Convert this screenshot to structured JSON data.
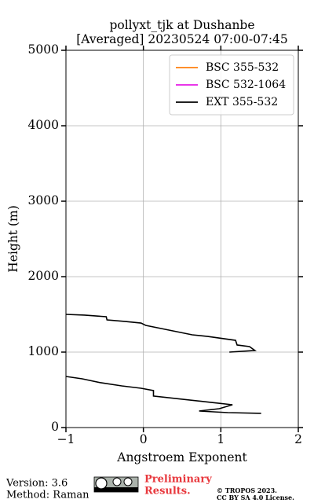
{
  "chart_data": {
    "type": "line",
    "title": [
      "pollyxt_tjk at Dushanbe",
      "[Averaged] 20230524 07:00-07:45"
    ],
    "x_label": "Angstroem Exponent",
    "y_label": "Height (m)",
    "y": [
      188,
      198,
      219,
      250,
      302,
      333,
      417,
      490,
      521,
      552,
      594,
      646,
      677,
      null,
      1000,
      1021,
      1073,
      1094,
      1156,
      1208,
      1229,
      1354,
      1385,
      1406,
      1427,
      1469,
      1490,
      1500
    ],
    "series": [
      {
        "name": "BSC 355-532",
        "color": "#ff7f0e",
        "values": [
          null,
          null,
          null,
          null,
          null,
          null,
          null,
          null,
          null,
          null,
          null,
          null,
          null,
          null,
          null,
          null,
          null,
          null,
          null,
          null,
          null,
          null,
          null,
          null,
          null,
          null,
          null,
          null
        ]
      },
      {
        "name": "BSC 532-1064",
        "color": "#e619e6",
        "values": [
          null,
          null,
          null,
          null,
          null,
          null,
          null,
          null,
          null,
          null,
          null,
          null,
          null,
          null,
          null,
          null,
          null,
          null,
          null,
          null,
          null,
          null,
          null,
          null,
          null,
          null,
          null,
          null
        ]
      },
      {
        "name": "EXT 355-532",
        "color": "#000000",
        "values": [
          1.52,
          1.09,
          0.72,
          0.98,
          1.15,
          0.88,
          0.13,
          0.13,
          -0.03,
          -0.28,
          -0.55,
          -0.79,
          -1.0,
          null,
          1.11,
          1.44,
          1.37,
          1.21,
          1.19,
          0.83,
          0.63,
          0.03,
          -0.03,
          -0.23,
          -0.47,
          -0.48,
          -0.76,
          -1.0
        ]
      }
    ],
    "xlim": [
      -1,
      2
    ],
    "xticks": [
      {
        "value": -1,
        "label": "−1"
      },
      0,
      1,
      2
    ],
    "ylim": [
      0,
      5000
    ],
    "yticks": [
      0,
      1000,
      2000,
      3000,
      4000,
      5000
    ],
    "grid": true,
    "legend": "upper right"
  },
  "footer": {
    "version": "Version: 3.6",
    "method": "Method: Raman",
    "notice": [
      "Preliminary",
      "Results."
    ],
    "copyright": [
      "© TROPOS 2023.",
      "CC BY SA 4.0 License."
    ]
  }
}
